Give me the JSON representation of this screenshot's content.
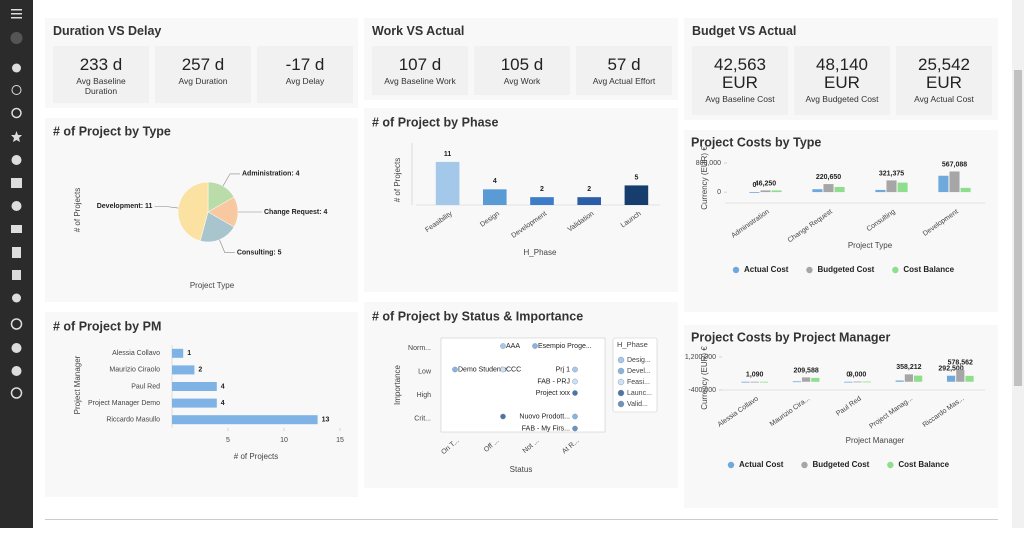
{
  "kpi_panels": [
    {
      "title": "Duration VS Delay",
      "items": [
        {
          "value": "233 d",
          "label": "Avg Baseline Duration"
        },
        {
          "value": "257 d",
          "label": "Avg Duration"
        },
        {
          "value": "-17 d",
          "label": "Avg Delay"
        }
      ]
    },
    {
      "title": "Work VS Actual",
      "items": [
        {
          "value": "107 d",
          "label": "Avg Baseline Work"
        },
        {
          "value": "105 d",
          "label": "Avg Work"
        },
        {
          "value": "57 d",
          "label": "Avg Actual Effort"
        }
      ]
    },
    {
      "title": "Budget VS Actual",
      "items": [
        {
          "value": "42,563 EUR",
          "label": "Avg Baseline Cost"
        },
        {
          "value": "48,140 EUR",
          "label": "Avg Budgeted Cost"
        },
        {
          "value": "25,542 EUR",
          "label": "Avg Actual Cost"
        }
      ]
    }
  ],
  "chart_data": [
    {
      "type": "pie",
      "title": "# of Project by Type",
      "y_label": "# of Projects",
      "x_label": "Project Type",
      "categories": [
        "Administration",
        "Change Request",
        "Consulting",
        "Development"
      ],
      "values": [
        4,
        4,
        5,
        11
      ],
      "value_labels": [
        "Administration: 4",
        "Change Request: 4",
        "Consulting: 5",
        "Development: 11"
      ],
      "colors": [
        "#b9dca8",
        "#f8c9a0",
        "#a8c4cc",
        "#fbe2a2"
      ]
    },
    {
      "type": "bar",
      "title": "# of Project by Phase",
      "y_label": "# of Projects",
      "x_label": "H_Phase",
      "categories": [
        "Feasibility",
        "Design",
        "Development",
        "Validation",
        "Launch"
      ],
      "values": [
        11,
        4,
        2,
        2,
        5
      ],
      "colors": [
        "#a3c8ea",
        "#5b9bd5",
        "#3c7cc8",
        "#2a5ea6",
        "#173d6c"
      ],
      "ylim": [
        0,
        12
      ]
    },
    {
      "type": "barh",
      "title": "# of Project by PM",
      "y_label": "Project Manager",
      "x_label": "# of Projects",
      "categories": [
        "Alessia Collavo",
        "Maurizio Ciraolo",
        "Paul Red",
        "Project Manager Demo",
        "Riccardo Masullo"
      ],
      "values": [
        1,
        2,
        4,
        4,
        13
      ],
      "color": "#7fb3e6",
      "xlim": [
        0,
        15
      ],
      "xticks": [
        5,
        10,
        15
      ]
    },
    {
      "type": "scatter",
      "title": "# of Project by Status & Importance",
      "y_label": "Importance",
      "x_label": "Status",
      "x_categories": [
        "On T...",
        "Off ...",
        "Not ...",
        "At R..."
      ],
      "y_categories": [
        "Norm...",
        "Low",
        "High",
        "Crit..."
      ],
      "legend_title": "H_Phase",
      "series": [
        {
          "name": "Desig...",
          "color": "#a9c8e8",
          "points": [
            {
              "x": "Off ...",
              "y": "Norm...",
              "label": "AAA"
            },
            {
              "x": "At R...",
              "y": "Low",
              "label": "Prj 1"
            }
          ]
        },
        {
          "name": "Devel...",
          "color": "#8db3dc",
          "points": [
            {
              "x": "Not ...",
              "y": "Norm...",
              "label": "Esempio Proge..."
            },
            {
              "x": "On T...",
              "y": "Low",
              "label": "Demo Studente"
            },
            {
              "x": "At R...",
              "y": "Crit...",
              "label": "Nuovo Prodott..."
            }
          ]
        },
        {
          "name": "Feasi...",
          "color": "#d0e1f2",
          "points": [
            {
              "x": "Off ...",
              "y": "Low",
              "label": "CCC"
            },
            {
              "x": "At R...",
              "y": "Low",
              "label": "FAB - PRJ"
            }
          ]
        },
        {
          "name": "Launc...",
          "color": "#4f74a0",
          "points": [
            {
              "x": "At R...",
              "y": "High",
              "label": "Project xxx"
            },
            {
              "x": "Off ...",
              "y": "Crit..."
            }
          ]
        },
        {
          "name": "Valid...",
          "color": "#7191b9",
          "points": [
            {
              "x": "At R...",
              "y": "Crit...",
              "label": "FAB - My Firs..."
            }
          ]
        }
      ]
    },
    {
      "type": "bar",
      "title": "Project Costs by Type",
      "y_label": "Currency (EUR) €",
      "x_label": "Project Type",
      "categories": [
        "Administration",
        "Change Request",
        "Consulting",
        "Development"
      ],
      "series": [
        {
          "name": "Actual Cost",
          "color": "#6fa8dc",
          "values": [
            0,
            80000,
            60000,
            450000
          ],
          "value_labels": [
            "0",
            null,
            null,
            null
          ]
        },
        {
          "name": "Budgeted Cost",
          "color": "#a6a6a6",
          "values": [
            46250,
            220650,
            321375,
            567088
          ],
          "value_labels": [
            "46,250",
            "220,650",
            "321,375",
            "567,088"
          ]
        },
        {
          "name": "Cost Balance",
          "color": "#8ede8e",
          "values": [
            46250,
            140650,
            261375,
            117088
          ],
          "value_labels": [
            null,
            null,
            null,
            null
          ]
        }
      ],
      "ylim": [
        -300000,
        1200000
      ],
      "yticks": [
        {
          "value": 0,
          "label": "0"
        },
        {
          "value": 800000,
          "label": "800,000"
        }
      ]
    },
    {
      "type": "bar",
      "title": "Project Costs by Project Manager",
      "y_label": "Currency (EUR) €",
      "x_label": "Project Manager",
      "categories": [
        "Alessia Collavo",
        "Maurizio Cira...",
        "Paul Red",
        "Project Manag...",
        "Riccardo Mas..."
      ],
      "series": [
        {
          "name": "Actual Cost",
          "color": "#6fa8dc",
          "values": [
            0,
            20000,
            0,
            60000,
            292500
          ],
          "value_labels": [
            null,
            null,
            "0",
            null,
            "292,500"
          ]
        },
        {
          "name": "Budgeted Cost",
          "color": "#a6a6a6",
          "values": [
            1090,
            209588,
            9000,
            358212,
            578562
          ],
          "value_labels": [
            "1,090",
            "209,588",
            "9,000",
            "358,212",
            "578,562"
          ]
        },
        {
          "name": "Cost Balance",
          "color": "#8ede8e",
          "values": [
            1090,
            189588,
            9000,
            298212,
            286062
          ],
          "value_labels": [
            null,
            null,
            null,
            null,
            null
          ]
        }
      ],
      "ylim": [
        -400000,
        1200000
      ],
      "yticks": [
        {
          "value": -400000,
          "label": "-400,000"
        },
        {
          "value": 1200000,
          "label": "1,200,000"
        }
      ]
    }
  ]
}
